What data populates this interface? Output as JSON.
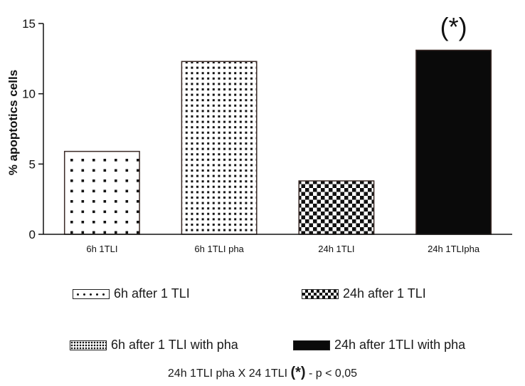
{
  "chart_data": {
    "type": "bar",
    "ylabel": "% apoptotics cells",
    "ylim": [
      0,
      15
    ],
    "yticks": [
      0,
      5,
      10,
      15
    ],
    "categories": [
      "6h 1TLI",
      "6h 1TLI pha",
      "24h 1TLI",
      "24h 1TLIpha"
    ],
    "values": [
      5.9,
      12.3,
      3.8,
      13.1
    ],
    "patterns": [
      "sparse-dots",
      "dense-dots",
      "checkerboard",
      "solid"
    ],
    "annotation": "(*)",
    "annotation_category": "24h 1TLIpha"
  },
  "legend": {
    "items": [
      {
        "label": "6h after 1 TLI",
        "pattern": "sparse-dots"
      },
      {
        "label": "24h after 1 TLI",
        "pattern": "checkerboard"
      },
      {
        "label": "6h after 1 TLI with pha",
        "pattern": "dense-dots"
      },
      {
        "label": "24h after 1TLI with pha",
        "pattern": "solid"
      }
    ]
  },
  "footnote": {
    "prefix": "24h 1TLI pha  X 24 1TLI ",
    "star": "(*)",
    "suffix": " - p < 0,05"
  }
}
